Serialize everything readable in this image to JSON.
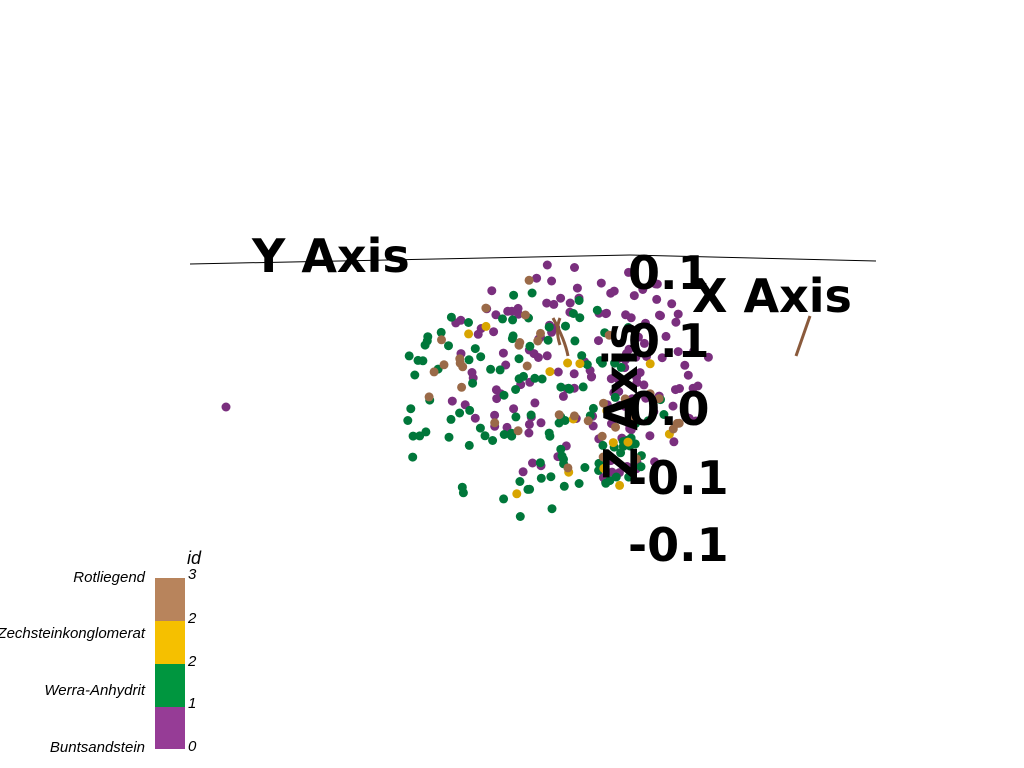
{
  "chart_data": {
    "type": "scatter",
    "title": "",
    "axes": {
      "x_title": "X Axis",
      "y_title": "Y Axis",
      "z_title": "Z Axis",
      "tick_labels": [
        "0.1",
        "0.1",
        "0.0",
        "-0.1",
        "-0.1"
      ]
    },
    "legend": {
      "title": "id",
      "placement": "bottom-left",
      "categories": [
        {
          "label": "Rotliegend",
          "value": "3",
          "color": "#b8845c"
        },
        {
          "label": "Zechsteinkonglomerat",
          "value": "2",
          "color": "#f5c000"
        },
        {
          "label": "Werra-Anhydrit",
          "value": "2",
          "color": "#00963f"
        },
        {
          "label": "Buntsandstein",
          "value": "1",
          "color": "#963c96"
        }
      ],
      "bottom_value": "0"
    },
    "series": [
      {
        "id": 0,
        "color": "#7a2f7e",
        "count": 150
      },
      {
        "id": 1,
        "color": "#00773a",
        "count": 120
      },
      {
        "id": 2,
        "color": "#d8a500",
        "count": 15
      },
      {
        "id": 3,
        "color": "#9a6a48",
        "count": 35
      }
    ],
    "fault_color": "#8a5a3c"
  }
}
